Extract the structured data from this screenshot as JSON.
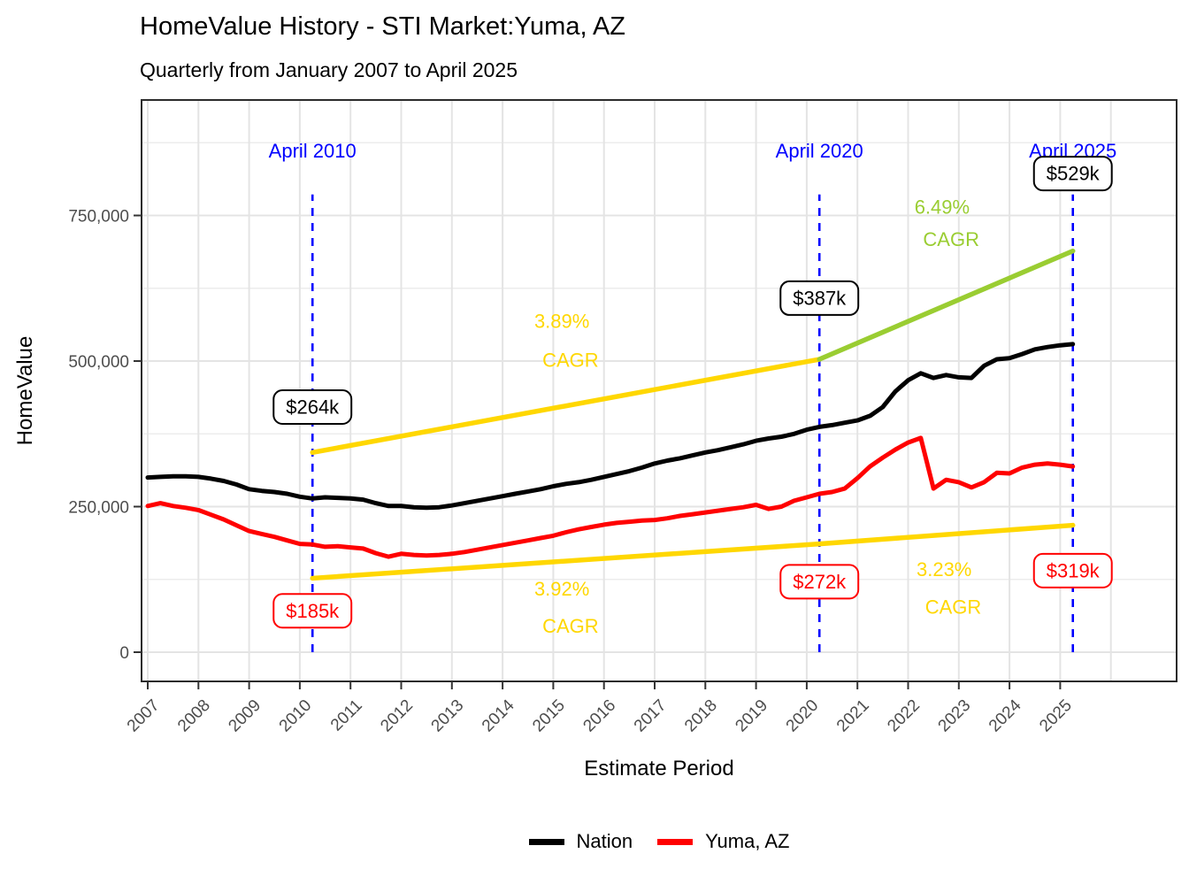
{
  "chart_data": {
    "type": "line",
    "title": "HomeValue History - STI Market:Yuma, AZ",
    "subtitle": "Quarterly from January 2007 to April 2025",
    "xlabel": "Estimate Period",
    "ylabel": "HomeValue",
    "grid": true,
    "x_start": 2007.0,
    "x_step": 0.25,
    "x_ticks": [
      2007,
      2008,
      2009,
      2010,
      2011,
      2012,
      2013,
      2014,
      2015,
      2016,
      2017,
      2018,
      2019,
      2020,
      2021,
      2022,
      2023,
      2024,
      2025
    ],
    "y_ticks": [
      0,
      250000,
      500000,
      750000
    ],
    "y_tick_labels": [
      "0",
      "250,000",
      "500,000",
      "750,000"
    ],
    "ylim": [
      -50000,
      948000
    ],
    "series": [
      {
        "name": "Nation",
        "color": "#000000",
        "values": [
          300000,
          301000,
          302000,
          302000,
          301000,
          298000,
          294000,
          288000,
          280000,
          277000,
          275000,
          272000,
          267000,
          264000,
          266000,
          265000,
          264000,
          262000,
          256000,
          251000,
          251000,
          249000,
          248000,
          249000,
          252000,
          256000,
          260000,
          264000,
          268000,
          272000,
          276000,
          280000,
          285000,
          289000,
          292000,
          296000,
          301000,
          306000,
          311000,
          317000,
          324000,
          329000,
          333000,
          338000,
          343000,
          347000,
          352000,
          357000,
          363000,
          367000,
          370000,
          375000,
          382000,
          387000,
          390000,
          394000,
          398000,
          406000,
          421000,
          448000,
          467000,
          479000,
          471000,
          476000,
          472000,
          471000,
          492000,
          503000,
          505000,
          512000,
          520000,
          524000,
          527000,
          529000
        ]
      },
      {
        "name": "Yuma, AZ",
        "color": "#FF0000",
        "values": [
          251000,
          256000,
          251000,
          248000,
          244000,
          236000,
          228000,
          218000,
          208000,
          203000,
          198000,
          192000,
          186000,
          185000,
          181000,
          182000,
          180000,
          178000,
          170000,
          164000,
          169000,
          167000,
          166000,
          167000,
          169000,
          172000,
          176000,
          180000,
          184000,
          188000,
          192000,
          196000,
          200000,
          206000,
          211000,
          215000,
          219000,
          222000,
          224000,
          226000,
          227000,
          230000,
          234000,
          237000,
          240000,
          243000,
          246000,
          249000,
          253000,
          246000,
          250000,
          260000,
          266000,
          272000,
          275000,
          281000,
          299000,
          319000,
          334000,
          348000,
          360000,
          368000,
          281000,
          296000,
          292000,
          283000,
          292000,
          308000,
          307000,
          317000,
          322000,
          324000,
          322000,
          319000
        ]
      }
    ],
    "trend_lines": [
      {
        "name": "nation-trend-2010-2020",
        "color": "#FFD700",
        "x1": 2010.25,
        "v1": 343000,
        "x2": 2020.25,
        "v2": 503000,
        "cagr": "3.89%"
      },
      {
        "name": "nation-trend-2020-2025",
        "color": "#9ACD32",
        "x1": 2020.25,
        "v1": 503000,
        "x2": 2025.25,
        "v2": 689000,
        "cagr": "6.49%"
      },
      {
        "name": "market-trend-2010-2020",
        "color": "#FFD700",
        "x1": 2010.25,
        "v1": 127000,
        "x2": 2020.25,
        "v2": 186000,
        "cagr": "3.92%"
      },
      {
        "name": "market-trend-2020-2025",
        "color": "#FFD700",
        "x1": 2020.25,
        "v1": 186000,
        "x2": 2025.25,
        "v2": 218000,
        "cagr": "3.23%"
      }
    ],
    "vlines": [
      {
        "t": 2010.25,
        "label": "April 2010"
      },
      {
        "t": 2020.25,
        "label": "April 2020"
      },
      {
        "t": 2025.25,
        "label": "April 2025"
      }
    ],
    "vline_color": "#0000FF",
    "vline_top_value": 786000,
    "callouts": [
      {
        "text": "$264k",
        "t": 2010.25,
        "v": 421000,
        "color": "#000000"
      },
      {
        "text": "$185k",
        "t": 2010.25,
        "v": 71000,
        "color": "#FF0000"
      },
      {
        "text": "$387k",
        "t": 2020.25,
        "v": 608000,
        "color": "#000000"
      },
      {
        "text": "$272k",
        "t": 2020.25,
        "v": 121000,
        "color": "#FF0000"
      },
      {
        "text": "$529k",
        "t": 2025.25,
        "v": 822000,
        "color": "#000000"
      },
      {
        "text": "$319k",
        "t": 2025.25,
        "v": 140000,
        "color": "#FF0000"
      }
    ],
    "cagr_labels": [
      {
        "text": "3.89%",
        "t": 2015.17,
        "v": 568000,
        "color": "#FFD700"
      },
      {
        "text": "CAGR",
        "t": 2015.34,
        "v": 501000,
        "color": "#FFD700"
      },
      {
        "text": "6.49%",
        "t": 2022.67,
        "v": 764000,
        "color": "#9ACD32"
      },
      {
        "text": "CAGR",
        "t": 2022.85,
        "v": 708000,
        "color": "#9ACD32"
      },
      {
        "text": "3.92%",
        "t": 2015.17,
        "v": 108000,
        "color": "#FFD700"
      },
      {
        "text": "CAGR",
        "t": 2015.34,
        "v": 44000,
        "color": "#FFD700"
      },
      {
        "text": "3.23%",
        "t": 2022.71,
        "v": 141000,
        "color": "#FFD700"
      },
      {
        "text": "CAGR",
        "t": 2022.89,
        "v": 77000,
        "color": "#FFD700"
      }
    ],
    "legend": [
      {
        "label": "Nation",
        "color": "#000000"
      },
      {
        "label": "Yuma, AZ",
        "color": "#FF0000"
      }
    ],
    "colors": {
      "grid_major": "#E4E4E4",
      "grid_minor": "#ECECEC",
      "panel_border": "#2B2B2B",
      "tick_text": "#4D4D4D",
      "trend_gold": "#FFD700",
      "trend_green": "#9ACD32",
      "annotation_blue": "#0000FF"
    }
  }
}
